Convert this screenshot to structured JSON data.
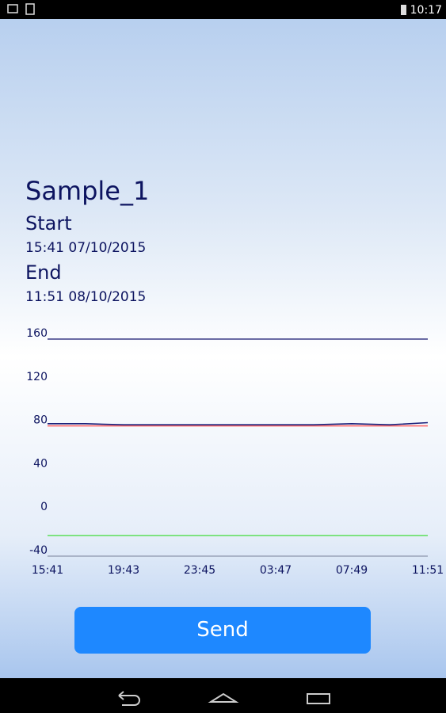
{
  "status_bar": {
    "time": "10:17"
  },
  "sample": {
    "name": "Sample_1",
    "start_label": "Start",
    "start": "15:41 07/10/2015",
    "end_label": "End",
    "end": "11:51 08/10/2015"
  },
  "chart_data": {
    "type": "line",
    "categories": [
      "15:41",
      null,
      "19:43",
      null,
      "23:45",
      null,
      "03:47",
      null,
      "07:49",
      null,
      "11:51"
    ],
    "series": [
      {
        "color": "#3b3b85",
        "values": [
          160,
          160,
          160,
          160,
          160,
          160,
          160,
          160,
          160,
          160,
          160
        ]
      },
      {
        "color": "#ff6a6a",
        "values": [
          80,
          80,
          80,
          80,
          80,
          80,
          80,
          80,
          80,
          80,
          80
        ]
      },
      {
        "color": "#1a1f7a",
        "values": [
          82,
          82,
          81,
          81,
          81,
          81,
          81,
          81,
          82,
          81,
          83
        ]
      },
      {
        "color": "#66e066",
        "values": [
          -21,
          -21,
          -21,
          -21,
          -21,
          -21,
          -21,
          -21,
          -21,
          -21,
          -21
        ]
      }
    ],
    "ylim": [
      -40,
      160
    ],
    "yticks": [
      -40,
      0,
      40,
      80,
      120,
      160
    ]
  },
  "button": {
    "label": "Send"
  }
}
